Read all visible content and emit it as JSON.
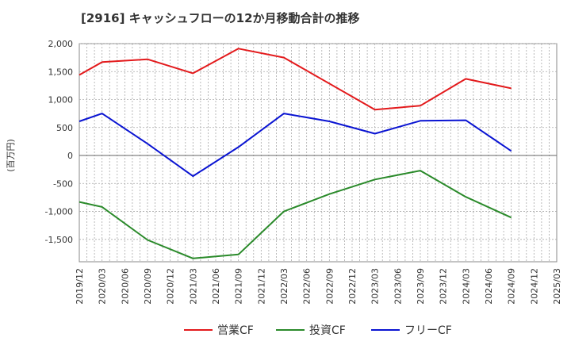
{
  "chart_data": {
    "type": "line",
    "title": "[2916]  キャッシュフローの12か月移動合計の推移",
    "ylabel": "(百万円)",
    "xlabel": "",
    "ylim": [
      -1900,
      2000
    ],
    "yticks": [
      2000,
      1500,
      1000,
      500,
      0,
      -500,
      -1000,
      -1500
    ],
    "ytick_labels": [
      "2,000",
      "1,500",
      "1,000",
      "500",
      "0",
      "-500",
      "-1,000",
      "-1,500"
    ],
    "categories": [
      "2019/12",
      "2020/03",
      "2020/06",
      "2020/09",
      "2020/12",
      "2021/03",
      "2021/06",
      "2021/09",
      "2021/12",
      "2022/03",
      "2022/06",
      "2022/09",
      "2022/12",
      "2023/03",
      "2023/06",
      "2023/09",
      "2023/12",
      "2024/03",
      "2024/06",
      "2024/09",
      "2024/12",
      "2025/03"
    ],
    "series": [
      {
        "name": "営業CF",
        "color": "#e31a1c",
        "values": [
          1440,
          1670,
          null,
          1720,
          null,
          1470,
          null,
          1910,
          null,
          1750,
          null,
          null,
          null,
          820,
          null,
          890,
          null,
          1370,
          null,
          1200,
          null,
          null
        ]
      },
      {
        "name": "投資CF",
        "color": "#2a8a2a",
        "values": [
          -830,
          -920,
          null,
          -1510,
          null,
          -1840,
          null,
          -1770,
          null,
          -1000,
          null,
          -690,
          null,
          -430,
          null,
          -270,
          null,
          -740,
          null,
          -1110,
          null,
          null
        ]
      },
      {
        "name": "フリーCF",
        "color": "#0a14d2",
        "values": [
          610,
          750,
          null,
          210,
          null,
          -370,
          null,
          150,
          null,
          750,
          null,
          610,
          null,
          390,
          null,
          620,
          null,
          630,
          null,
          80,
          null,
          null
        ]
      }
    ],
    "legend_position": "bottom",
    "grid": true
  }
}
